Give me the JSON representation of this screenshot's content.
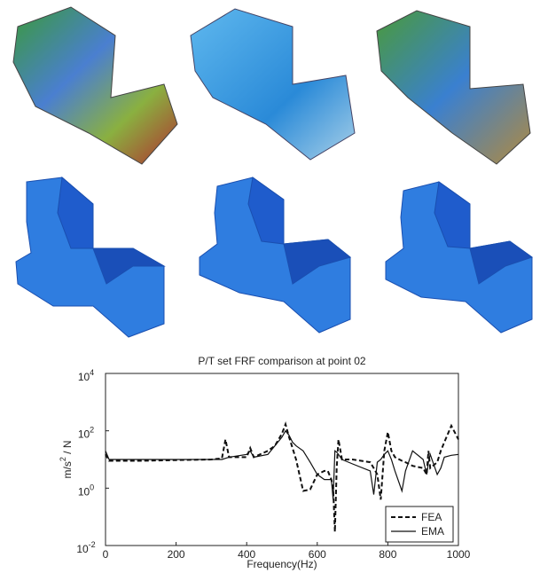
{
  "chart_data": {
    "type": "line",
    "title": "P/T set FRF comparison at point 02",
    "x_label": "Frequency(Hz)",
    "y_label": "m/s^2 / N",
    "xlim": [
      0,
      1000
    ],
    "xticks": [
      0,
      200,
      400,
      600,
      800,
      1000
    ],
    "ylim": [
      0.01,
      10000
    ],
    "yticks": [
      {
        "value": 0.01,
        "label": "10^-2"
      },
      {
        "value": 1,
        "label": "10^0"
      },
      {
        "value": 100,
        "label": "10^2"
      },
      {
        "value": 10000,
        "label": "10^4"
      }
    ],
    "log_scale_y": true,
    "grid": false,
    "legend": "lower right",
    "x": [
      0,
      10,
      100,
      200,
      300,
      330,
      340,
      350,
      400,
      410,
      420,
      460,
      480,
      500,
      510,
      520,
      530,
      540,
      560,
      580,
      600,
      620,
      630,
      640,
      645,
      650,
      655,
      660,
      670,
      700,
      750,
      760,
      770,
      780,
      790,
      800,
      810,
      820,
      840,
      850,
      870,
      900,
      910,
      915,
      920,
      940,
      950,
      960,
      980,
      1000
    ],
    "series": [
      {
        "name": "FEA",
        "color": "#111111",
        "line_style": "dashed",
        "values": [
          15,
          9,
          9,
          9.5,
          10,
          11,
          50,
          12,
          12,
          25,
          12,
          20,
          30,
          80,
          170,
          60,
          25,
          10,
          0.8,
          0.9,
          3,
          4,
          4,
          2,
          1,
          0.03,
          5,
          50,
          10,
          10,
          8,
          5,
          3,
          0.4,
          20,
          90,
          20,
          12,
          9,
          8,
          6,
          5,
          3,
          20,
          5,
          8,
          20,
          40,
          150,
          50
        ]
      },
      {
        "name": "EMA",
        "color": "#111111",
        "line_style": "solid",
        "values": [
          20,
          10,
          10,
          10,
          10,
          10,
          11,
          12,
          15,
          20,
          12,
          15,
          30,
          60,
          100,
          70,
          40,
          30,
          20,
          8,
          3,
          2,
          2,
          2,
          0.4,
          20,
          18,
          15,
          10,
          7,
          4,
          0.6,
          8,
          10,
          15,
          20,
          10,
          4,
          0.8,
          4,
          20,
          10,
          3,
          8,
          15,
          3,
          5,
          12,
          14,
          15
        ]
      }
    ]
  }
}
